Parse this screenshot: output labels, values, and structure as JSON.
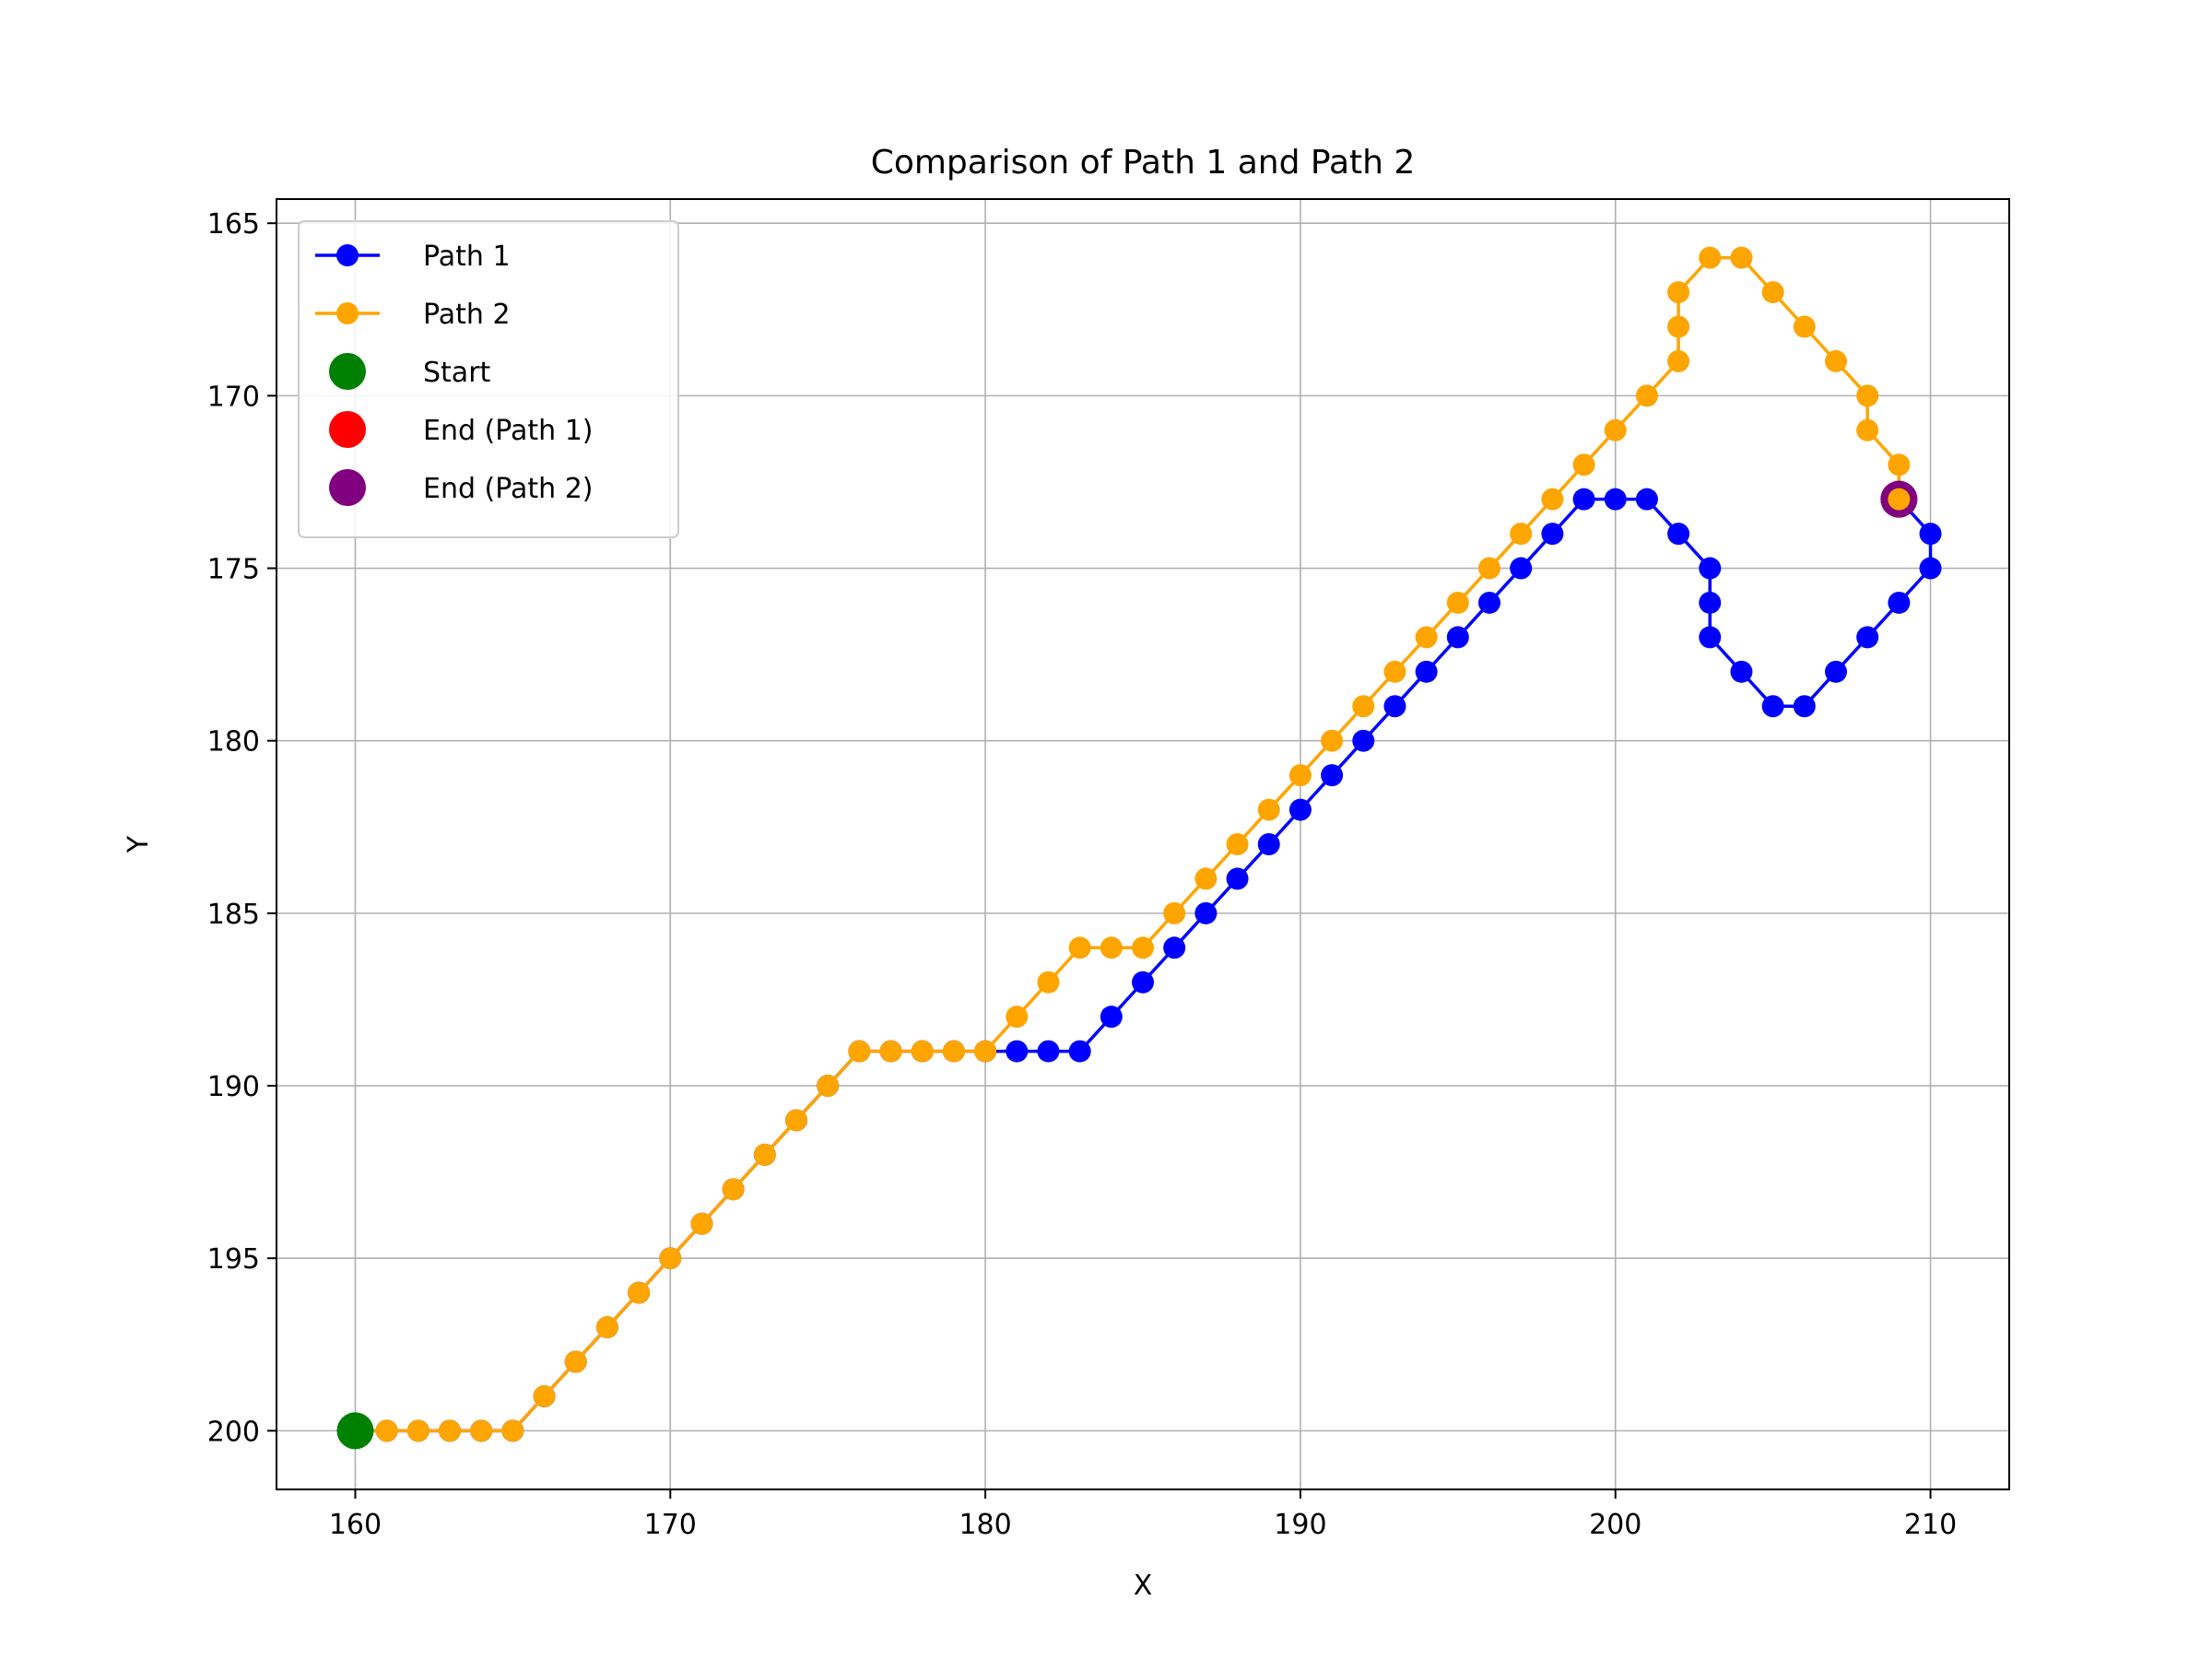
{
  "chart_data": {
    "type": "line",
    "title": "Comparison of Path 1 and Path 2",
    "xlabel": "X",
    "ylabel": "Y",
    "xlim": [
      157.5,
      212.5
    ],
    "ylim": [
      201.7,
      164.3
    ],
    "y_inverted": true,
    "xticks": [
      160,
      170,
      180,
      190,
      200,
      210
    ],
    "yticks": [
      165,
      170,
      175,
      180,
      185,
      190,
      195,
      200
    ],
    "grid": true,
    "legend_position": "upper-left",
    "series": [
      {
        "name": "Path 1",
        "color": "#0000ff",
        "marker": "circle",
        "points": [
          [
            160,
            200
          ],
          [
            161,
            200
          ],
          [
            162,
            200
          ],
          [
            163,
            200
          ],
          [
            164,
            200
          ],
          [
            165,
            200
          ],
          [
            166,
            199
          ],
          [
            167,
            198
          ],
          [
            168,
            197
          ],
          [
            169,
            196
          ],
          [
            170,
            195
          ],
          [
            171,
            194
          ],
          [
            172,
            193
          ],
          [
            173,
            192
          ],
          [
            174,
            191
          ],
          [
            175,
            190
          ],
          [
            176,
            189
          ],
          [
            177,
            189
          ],
          [
            178,
            189
          ],
          [
            179,
            189
          ],
          [
            180,
            189
          ],
          [
            181,
            189
          ],
          [
            182,
            189
          ],
          [
            183,
            189
          ],
          [
            184,
            188
          ],
          [
            185,
            187
          ],
          [
            186,
            186
          ],
          [
            187,
            185
          ],
          [
            188,
            184
          ],
          [
            189,
            183
          ],
          [
            190,
            182
          ],
          [
            191,
            181
          ],
          [
            192,
            180
          ],
          [
            193,
            179
          ],
          [
            194,
            178
          ],
          [
            195,
            177
          ],
          [
            196,
            176
          ],
          [
            197,
            175
          ],
          [
            198,
            174
          ],
          [
            199,
            173
          ],
          [
            200,
            173
          ],
          [
            201,
            173
          ],
          [
            202,
            174
          ],
          [
            203,
            175
          ],
          [
            203,
            176
          ],
          [
            203,
            177
          ],
          [
            204,
            178
          ],
          [
            205,
            179
          ],
          [
            206,
            179
          ],
          [
            207,
            178
          ],
          [
            208,
            177
          ],
          [
            209,
            176
          ],
          [
            210,
            175
          ],
          [
            210,
            174
          ],
          [
            209,
            173
          ]
        ]
      },
      {
        "name": "Path 2",
        "color": "#ffa500",
        "marker": "circle",
        "points": [
          [
            160,
            200
          ],
          [
            161,
            200
          ],
          [
            162,
            200
          ],
          [
            163,
            200
          ],
          [
            164,
            200
          ],
          [
            165,
            200
          ],
          [
            166,
            199
          ],
          [
            167,
            198
          ],
          [
            168,
            197
          ],
          [
            169,
            196
          ],
          [
            170,
            195
          ],
          [
            171,
            194
          ],
          [
            172,
            193
          ],
          [
            173,
            192
          ],
          [
            174,
            191
          ],
          [
            175,
            190
          ],
          [
            176,
            189
          ],
          [
            177,
            189
          ],
          [
            178,
            189
          ],
          [
            179,
            189
          ],
          [
            180,
            189
          ],
          [
            181,
            188
          ],
          [
            182,
            187
          ],
          [
            183,
            186
          ],
          [
            184,
            186
          ],
          [
            185,
            186
          ],
          [
            186,
            185
          ],
          [
            187,
            184
          ],
          [
            188,
            183
          ],
          [
            189,
            182
          ],
          [
            190,
            181
          ],
          [
            191,
            180
          ],
          [
            192,
            179
          ],
          [
            193,
            178
          ],
          [
            194,
            177
          ],
          [
            195,
            176
          ],
          [
            196,
            175
          ],
          [
            197,
            174
          ],
          [
            198,
            173
          ],
          [
            199,
            172
          ],
          [
            200,
            171
          ],
          [
            201,
            170
          ],
          [
            202,
            169
          ],
          [
            202,
            168
          ],
          [
            202,
            167
          ],
          [
            203,
            166
          ],
          [
            204,
            166
          ],
          [
            205,
            167
          ],
          [
            206,
            168
          ],
          [
            207,
            169
          ],
          [
            208,
            170
          ],
          [
            208,
            171
          ],
          [
            209,
            172
          ],
          [
            209,
            173
          ]
        ]
      }
    ],
    "markers": [
      {
        "name": "Start",
        "color": "#008000",
        "point": [
          160,
          200
        ]
      },
      {
        "name": "End (Path 1)",
        "color": "#ff0000",
        "point": [
          209,
          173
        ]
      },
      {
        "name": "End (Path 2)",
        "color": "#800080",
        "point": [
          209,
          173
        ]
      }
    ]
  }
}
